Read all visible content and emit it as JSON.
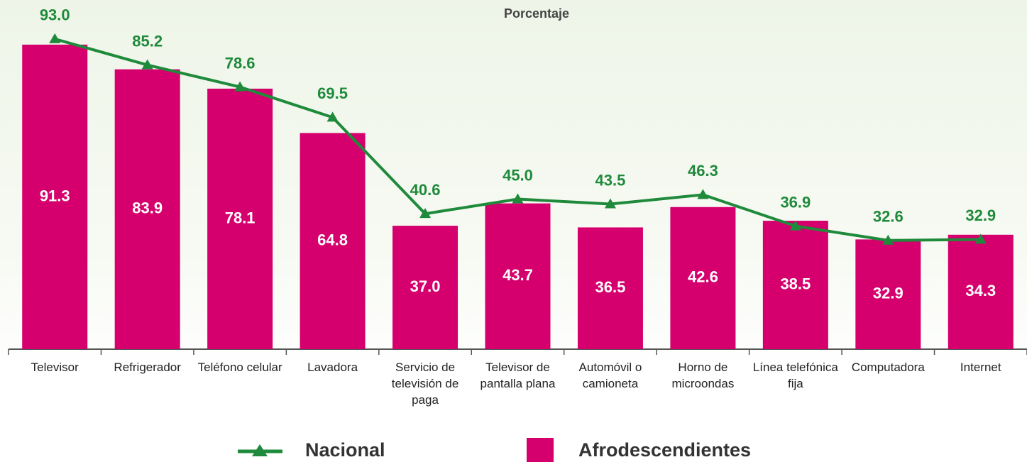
{
  "chart_data": {
    "type": "bar",
    "title": "Porcentaje",
    "categories": [
      "Televisor",
      "Refrigerador",
      "Teléfono celular",
      "Lavadora",
      "Servicio de televisión de paga",
      "Televisor de pantalla plana",
      "Automóvil o camioneta",
      "Horno de microondas",
      "Línea telefónica fija",
      "Computadora",
      "Internet"
    ],
    "series": [
      {
        "name": "Nacional",
        "type": "line",
        "color": "#1f8a3b",
        "values": [
          93.0,
          85.2,
          78.6,
          69.5,
          40.6,
          45.0,
          43.5,
          46.3,
          36.9,
          32.6,
          32.9
        ],
        "value_labels": [
          "93.0",
          "85.2",
          "78.6",
          "69.5",
          "40.6",
          "45.0",
          "43.5",
          "46.3",
          "36.9",
          "32.6",
          "32.9"
        ]
      },
      {
        "name": "Afrodescendientes",
        "type": "bar",
        "color": "#d5006d",
        "values": [
          91.3,
          83.9,
          78.1,
          64.8,
          37.0,
          43.7,
          36.5,
          42.6,
          38.5,
          32.9,
          34.3
        ],
        "value_labels": [
          "91.3",
          "83.9",
          "78.1",
          "64.8",
          "37.0",
          "43.7",
          "36.5",
          "42.6",
          "38.5",
          "32.9",
          "34.3"
        ]
      }
    ],
    "ylim": [
      0,
      100
    ]
  }
}
